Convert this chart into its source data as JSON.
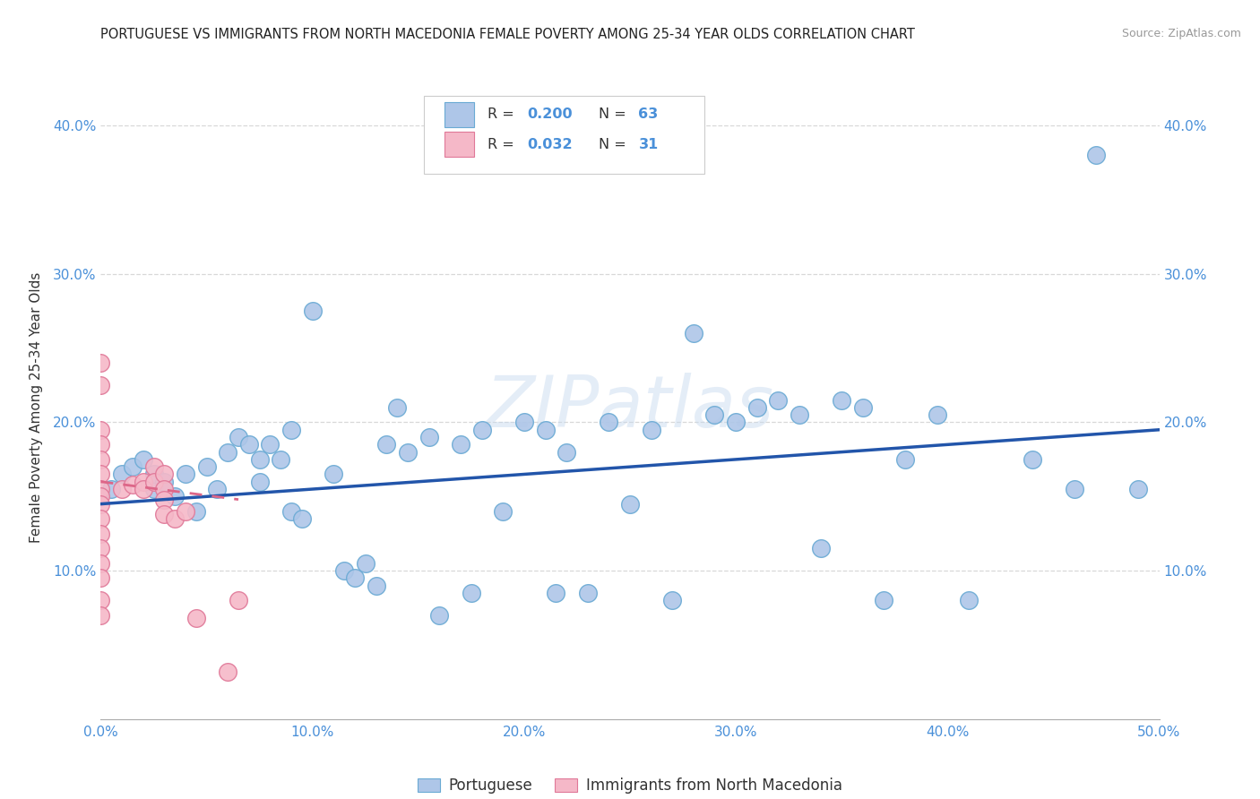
{
  "title": "PORTUGUESE VS IMMIGRANTS FROM NORTH MACEDONIA FEMALE POVERTY AMONG 25-34 YEAR OLDS CORRELATION CHART",
  "source": "Source: ZipAtlas.com",
  "ylabel": "Female Poverty Among 25-34 Year Olds",
  "xlim": [
    0.0,
    0.5
  ],
  "ylim": [
    0.0,
    0.42
  ],
  "xticks": [
    0.0,
    0.1,
    0.2,
    0.3,
    0.4,
    0.5
  ],
  "yticks": [
    0.1,
    0.2,
    0.3,
    0.4
  ],
  "xticklabels": [
    "0.0%",
    "10.0%",
    "20.0%",
    "30.0%",
    "40.0%",
    "50.0%"
  ],
  "yticklabels": [
    "10.0%",
    "20.0%",
    "30.0%",
    "40.0%"
  ],
  "background_color": "#ffffff",
  "grid_color": "#d8d8d8",
  "portuguese_color": "#aec6e8",
  "portuguese_edge_color": "#6aaad4",
  "macedonia_color": "#f5b8c8",
  "macedonia_edge_color": "#e07898",
  "trend_portuguese_color": "#2255aa",
  "trend_macedonia_color": "#dd6688",
  "R_portuguese": 0.2,
  "N_portuguese": 63,
  "R_macedonia": 0.032,
  "N_macedonia": 31,
  "legend_label_portuguese": "Portuguese",
  "legend_label_macedonia": "Immigrants from North Macedonia",
  "watermark": "ZIPatlas",
  "portuguese_x": [
    0.005,
    0.01,
    0.015,
    0.02,
    0.025,
    0.025,
    0.03,
    0.035,
    0.04,
    0.045,
    0.05,
    0.055,
    0.06,
    0.065,
    0.07,
    0.075,
    0.075,
    0.08,
    0.085,
    0.09,
    0.09,
    0.095,
    0.1,
    0.11,
    0.115,
    0.12,
    0.125,
    0.13,
    0.135,
    0.14,
    0.145,
    0.155,
    0.16,
    0.17,
    0.175,
    0.18,
    0.19,
    0.2,
    0.21,
    0.215,
    0.22,
    0.23,
    0.24,
    0.25,
    0.26,
    0.27,
    0.28,
    0.29,
    0.3,
    0.31,
    0.32,
    0.33,
    0.34,
    0.35,
    0.36,
    0.37,
    0.38,
    0.395,
    0.41,
    0.44,
    0.46,
    0.47,
    0.49
  ],
  "portuguese_y": [
    0.155,
    0.165,
    0.17,
    0.175,
    0.155,
    0.165,
    0.16,
    0.15,
    0.165,
    0.14,
    0.17,
    0.155,
    0.18,
    0.19,
    0.185,
    0.175,
    0.16,
    0.185,
    0.175,
    0.195,
    0.14,
    0.135,
    0.275,
    0.165,
    0.1,
    0.095,
    0.105,
    0.09,
    0.185,
    0.21,
    0.18,
    0.19,
    0.07,
    0.185,
    0.085,
    0.195,
    0.14,
    0.2,
    0.195,
    0.085,
    0.18,
    0.085,
    0.2,
    0.145,
    0.195,
    0.08,
    0.26,
    0.205,
    0.2,
    0.21,
    0.215,
    0.205,
    0.115,
    0.215,
    0.21,
    0.08,
    0.175,
    0.205,
    0.08,
    0.175,
    0.155,
    0.38,
    0.155
  ],
  "macedonia_x": [
    0.0,
    0.0,
    0.0,
    0.0,
    0.0,
    0.0,
    0.0,
    0.0,
    0.0,
    0.0,
    0.0,
    0.0,
    0.0,
    0.0,
    0.0,
    0.0,
    0.01,
    0.015,
    0.02,
    0.02,
    0.025,
    0.025,
    0.03,
    0.03,
    0.03,
    0.03,
    0.035,
    0.04,
    0.045,
    0.06,
    0.065
  ],
  "macedonia_y": [
    0.24,
    0.225,
    0.195,
    0.185,
    0.175,
    0.165,
    0.155,
    0.15,
    0.145,
    0.135,
    0.125,
    0.115,
    0.105,
    0.095,
    0.08,
    0.07,
    0.155,
    0.158,
    0.16,
    0.155,
    0.17,
    0.16,
    0.165,
    0.155,
    0.148,
    0.138,
    0.135,
    0.14,
    0.068,
    0.032,
    0.08
  ],
  "trend_port_x_start": 0.0,
  "trend_port_x_end": 0.5,
  "trend_port_y_start": 0.145,
  "trend_port_y_end": 0.195,
  "trend_mac_x_start": 0.0,
  "trend_mac_x_end": 0.065,
  "trend_mac_y_start": 0.16,
  "trend_mac_y_end": 0.148
}
